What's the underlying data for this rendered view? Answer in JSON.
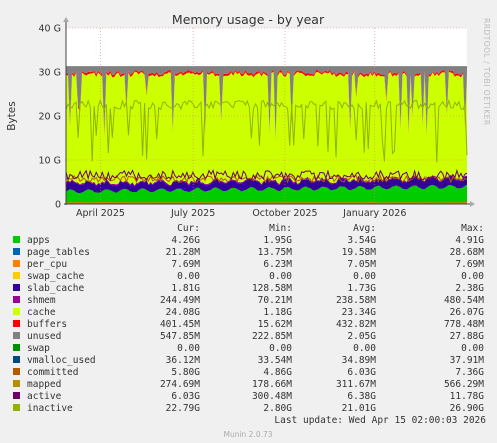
{
  "chart_data": {
    "type": "area",
    "title": "Memory usage - by year",
    "ylabel": "Bytes",
    "side_label": "RRDTOOL / TOBI OETIKER",
    "ylim": [
      0,
      40000000000
    ],
    "y_ticks": [
      {
        "value": 0,
        "label": "0"
      },
      {
        "value": 10000000000,
        "label": "10 G"
      },
      {
        "value": 20000000000,
        "label": "20 G"
      },
      {
        "value": 30000000000,
        "label": "30 G"
      },
      {
        "value": 40000000000,
        "label": "40 G"
      }
    ],
    "x_ticks": [
      {
        "label": "April 2025"
      },
      {
        "label": "July 2025"
      },
      {
        "label": "October 2025"
      },
      {
        "label": "January 2026"
      }
    ],
    "grid": true,
    "columns": [
      "Cur:",
      "Min:",
      "Avg:",
      "Max:"
    ],
    "series": [
      {
        "name": "apps",
        "color": "#00cc00",
        "cur": "4.26G",
        "min": "1.95G",
        "avg": "3.54G",
        "max": "4.91G"
      },
      {
        "name": "page_tables",
        "color": "#0066b3",
        "cur": "21.28M",
        "min": "13.75M",
        "avg": "19.58M",
        "max": "28.68M"
      },
      {
        "name": "per_cpu",
        "color": "#ff8000",
        "cur": "7.69M",
        "min": "6.23M",
        "avg": "7.05M",
        "max": "7.69M"
      },
      {
        "name": "swap_cache",
        "color": "#ffcc00",
        "cur": "0.00",
        "min": "0.00",
        "avg": "0.00",
        "max": "0.00"
      },
      {
        "name": "slab_cache",
        "color": "#330099",
        "cur": "1.81G",
        "min": "128.58M",
        "avg": "1.73G",
        "max": "2.38G"
      },
      {
        "name": "shmem",
        "color": "#990099",
        "cur": "244.49M",
        "min": "70.21M",
        "avg": "238.58M",
        "max": "480.54M"
      },
      {
        "name": "cache",
        "color": "#ccff00",
        "cur": "24.08G",
        "min": "1.18G",
        "avg": "23.34G",
        "max": "26.07G"
      },
      {
        "name": "buffers",
        "color": "#ff0000",
        "cur": "401.45M",
        "min": "15.62M",
        "avg": "432.82M",
        "max": "778.48M"
      },
      {
        "name": "unused",
        "color": "#808080",
        "cur": "547.85M",
        "min": "222.85M",
        "avg": "2.05G",
        "max": "27.88G"
      },
      {
        "name": "swap",
        "color": "#008f00",
        "cur": "0.00",
        "min": "0.00",
        "avg": "0.00",
        "max": "0.00"
      },
      {
        "name": "vmalloc_used",
        "color": "#00487d",
        "cur": "36.12M",
        "min": "33.54M",
        "avg": "34.89M",
        "max": "37.91M"
      },
      {
        "name": "committed",
        "color": "#b35a00",
        "cur": "5.80G",
        "min": "4.86G",
        "avg": "6.03G",
        "max": "7.36G"
      },
      {
        "name": "mapped",
        "color": "#b38f00",
        "cur": "274.69M",
        "min": "178.66M",
        "avg": "311.67M",
        "max": "566.29M"
      },
      {
        "name": "active",
        "color": "#6b006b",
        "cur": "6.03G",
        "min": "300.48M",
        "avg": "6.38G",
        "max": "11.78G"
      },
      {
        "name": "inactive",
        "color": "#8fb300",
        "cur": "22.79G",
        "min": "2.80G",
        "avg": "21.01G",
        "max": "26.90G"
      }
    ],
    "last_update": "Last update: Wed Apr 15 02:00:03 2026",
    "footer": "Munin 2.0.73"
  }
}
